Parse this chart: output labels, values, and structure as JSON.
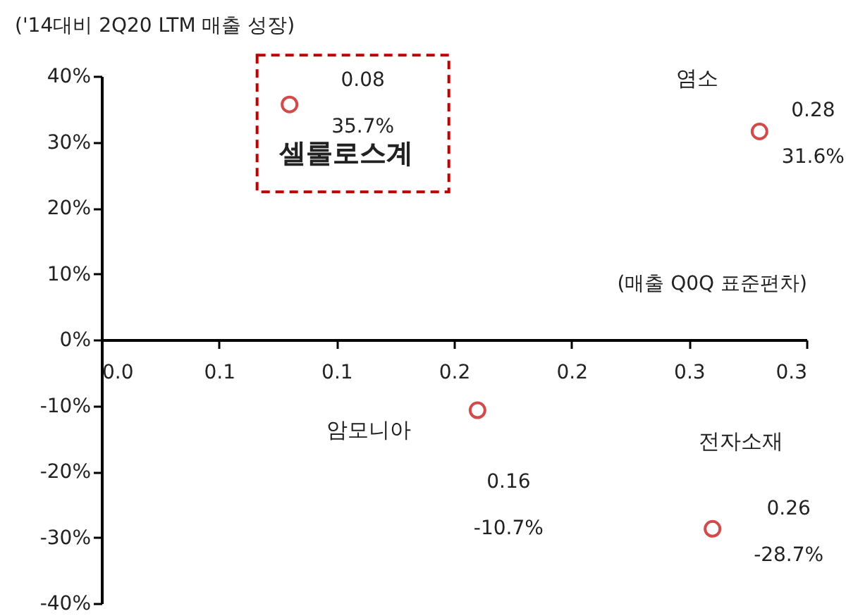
{
  "chart_data": {
    "type": "scatter",
    "xlabel": "(매출 Q0Q 표준편차)",
    "ylabel": "('14대비 2Q20 LTM 매출 성장)",
    "x": [
      0.08,
      0.28,
      0.16,
      0.26
    ],
    "series": [
      {
        "color": "#c00000",
        "values": [
          35.7,
          31.6,
          -10.7,
          -28.7
        ],
        "value_labels": [
          "0.08\n35.7%",
          "0.28\n31.6%",
          "0.16\n-10.7%",
          "0.26\n-28.7%"
        ]
      }
    ],
    "annotations": [
      "셀룰로스계",
      "염소",
      "암모니아",
      "전자소재"
    ],
    "marker": "circle",
    "grid": false,
    "xlim": [
      0,
      0.3
    ],
    "xticks": [
      {
        "value": 0,
        "label": "0.0"
      },
      {
        "value": 0.05,
        "label": "0.1"
      },
      {
        "value": 0.1,
        "label": "0.1"
      },
      {
        "value": 0.15,
        "label": "0.2"
      },
      {
        "value": 0.2,
        "label": "0.2"
      },
      {
        "value": 0.25,
        "label": "0.3"
      },
      {
        "value": 0.3,
        "label": "0.3"
      }
    ],
    "ylim": [
      -40,
      40
    ],
    "yticks": [
      {
        "value": 40,
        "label": "40%"
      },
      {
        "value": 30,
        "label": "30%"
      },
      {
        "value": 20,
        "label": "20%"
      },
      {
        "value": 10,
        "label": "10%"
      },
      {
        "value": 0,
        "label": "0%"
      },
      {
        "value": -10,
        "label": "-10%"
      },
      {
        "value": -20,
        "label": "-20%"
      },
      {
        "value": -30,
        "label": "-30%"
      },
      {
        "value": -40,
        "label": "-40%"
      }
    ]
  }
}
